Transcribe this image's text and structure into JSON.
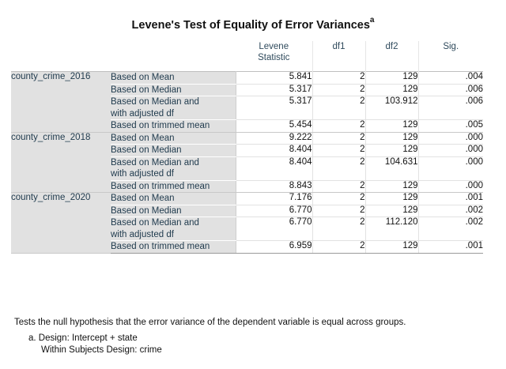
{
  "title": "Levene's Test of Equality of Error Variances",
  "title_footnote_marker": "a",
  "columns": {
    "stat_line1": "Levene",
    "stat_line2": "Statistic",
    "df1": "df1",
    "df2": "df2",
    "sig": "Sig."
  },
  "groups": [
    {
      "variable": "county_crime_2016",
      "rows": [
        {
          "method": "Based on Mean",
          "statistic": "5.841",
          "df1": "2",
          "df2": "129",
          "sig": ".004"
        },
        {
          "method": "Based on Median",
          "statistic": "5.317",
          "df1": "2",
          "df2": "129",
          "sig": ".006"
        },
        {
          "method_line1": "Based on Median and",
          "method_line2": "with adjusted df",
          "statistic": "5.317",
          "df1": "2",
          "df2": "103.912",
          "sig": ".006"
        },
        {
          "method": "Based on trimmed mean",
          "statistic": "5.454",
          "df1": "2",
          "df2": "129",
          "sig": ".005"
        }
      ]
    },
    {
      "variable": "county_crime_2018",
      "rows": [
        {
          "method": "Based on Mean",
          "statistic": "9.222",
          "df1": "2",
          "df2": "129",
          "sig": ".000"
        },
        {
          "method": "Based on Median",
          "statistic": "8.404",
          "df1": "2",
          "df2": "129",
          "sig": ".000"
        },
        {
          "method_line1": "Based on Median and",
          "method_line2": "with adjusted df",
          "statistic": "8.404",
          "df1": "2",
          "df2": "104.631",
          "sig": ".000"
        },
        {
          "method": "Based on trimmed mean",
          "statistic": "8.843",
          "df1": "2",
          "df2": "129",
          "sig": ".000"
        }
      ]
    },
    {
      "variable": "county_crime_2020",
      "rows": [
        {
          "method": "Based on Mean",
          "statistic": "7.176",
          "df1": "2",
          "df2": "129",
          "sig": ".001"
        },
        {
          "method": "Based on Median",
          "statistic": "6.770",
          "df1": "2",
          "df2": "129",
          "sig": ".002"
        },
        {
          "method_line1": "Based on Median and",
          "method_line2": "with adjusted df",
          "statistic": "6.770",
          "df1": "2",
          "df2": "112.120",
          "sig": ".002"
        },
        {
          "method": "Based on trimmed mean",
          "statistic": "6.959",
          "df1": "2",
          "df2": "129",
          "sig": ".001"
        }
      ]
    }
  ],
  "footnotes": {
    "note": "Tests the null hypothesis that the error variance of the dependent variable is equal across groups.",
    "a_line1": "a. Design: Intercept + state",
    "a_line2": "Within Subjects Design: crime"
  },
  "colors": {
    "label_bg": "#e1e1e1",
    "label_text": "#1f3a4d"
  }
}
